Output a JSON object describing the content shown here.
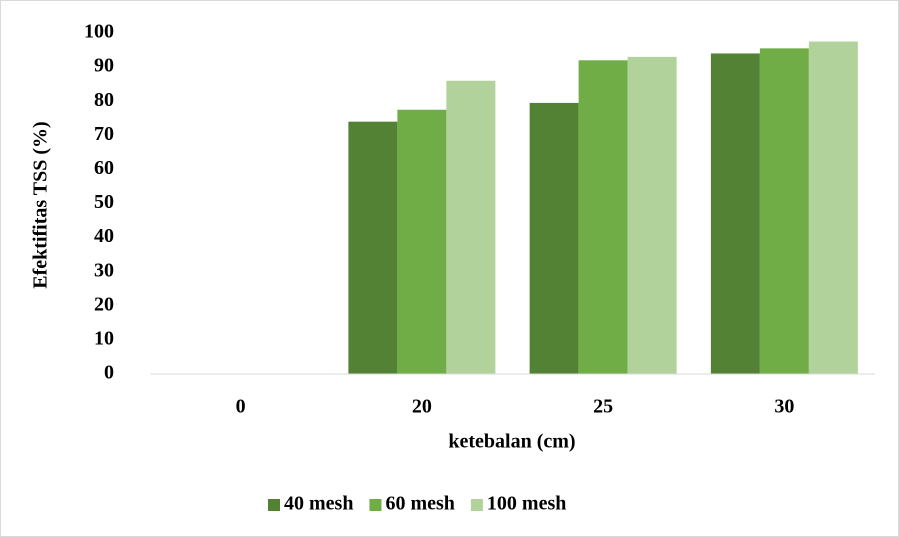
{
  "chart_data": {
    "type": "bar",
    "y_label": "Efektifitas TSS (%)",
    "x_label": "ketebalan (cm)",
    "categories": [
      "0",
      "20",
      "25",
      "30"
    ],
    "series": [
      {
        "name": "40 mesh",
        "color": "#548235",
        "values": [
          0,
          74,
          79.5,
          94
        ]
      },
      {
        "name": "60 mesh",
        "color": "#70ad47",
        "values": [
          0,
          77.5,
          92,
          95.5
        ]
      },
      {
        "name": "100 mesh",
        "color": "#b2d29c",
        "values": [
          0,
          86,
          93,
          97.5
        ]
      }
    ],
    "ylim": [
      0,
      100
    ],
    "yticks": [
      0,
      10,
      20,
      30,
      40,
      50,
      60,
      70,
      80,
      90,
      100
    ],
    "grid": false,
    "legend": "bottom"
  }
}
